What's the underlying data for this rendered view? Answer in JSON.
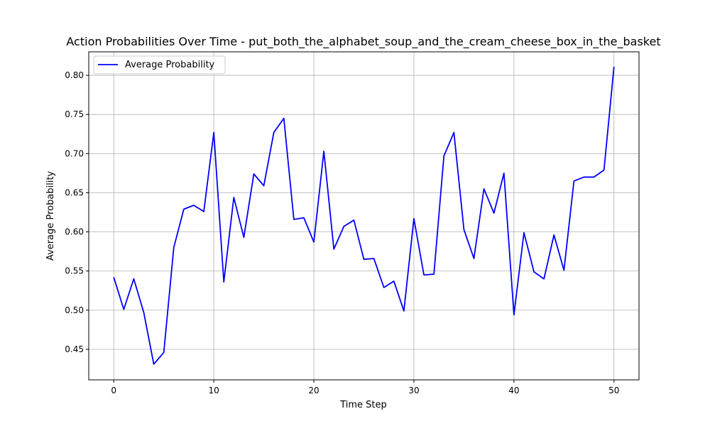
{
  "chart_data": {
    "type": "line",
    "title": "Action Probabilities Over Time - put_both_the_alphabet_soup_and_the_cream_cheese_box_in_the_basket",
    "xlabel": "Time Step",
    "ylabel": "Average Probability",
    "xlim": [
      -2.5,
      52.5
    ],
    "ylim": [
      0.411,
      0.83
    ],
    "xticks": [
      0,
      10,
      20,
      30,
      40,
      50
    ],
    "xtick_labels": [
      "0",
      "10",
      "20",
      "30",
      "40",
      "50"
    ],
    "yticks": [
      0.45,
      0.5,
      0.55,
      0.6,
      0.65,
      0.7,
      0.75,
      0.8
    ],
    "ytick_labels": [
      "0.45",
      "0.50",
      "0.55",
      "0.60",
      "0.65",
      "0.70",
      "0.75",
      "0.80"
    ],
    "grid": true,
    "legend_position": "top-left",
    "series": [
      {
        "name": "Average Probability",
        "color": "#0000ff",
        "x": [
          0,
          1,
          2,
          3,
          4,
          5,
          6,
          7,
          8,
          9,
          10,
          11,
          12,
          13,
          14,
          15,
          16,
          17,
          18,
          19,
          20,
          21,
          22,
          23,
          24,
          25,
          26,
          27,
          28,
          29,
          30,
          31,
          32,
          33,
          34,
          35,
          36,
          37,
          38,
          39,
          40,
          41,
          42,
          43,
          44,
          45,
          46,
          47,
          48,
          49,
          50
        ],
        "y": [
          0.542,
          0.501,
          0.54,
          0.497,
          0.431,
          0.446,
          0.58,
          0.629,
          0.634,
          0.626,
          0.727,
          0.536,
          0.644,
          0.593,
          0.674,
          0.659,
          0.727,
          0.745,
          0.616,
          0.618,
          0.587,
          0.703,
          0.578,
          0.607,
          0.615,
          0.565,
          0.566,
          0.529,
          0.537,
          0.499,
          0.617,
          0.545,
          0.546,
          0.697,
          0.727,
          0.603,
          0.566,
          0.655,
          0.624,
          0.675,
          0.494,
          0.599,
          0.549,
          0.54,
          0.596,
          0.551,
          0.665,
          0.67,
          0.67,
          0.679,
          0.811
        ]
      }
    ]
  }
}
